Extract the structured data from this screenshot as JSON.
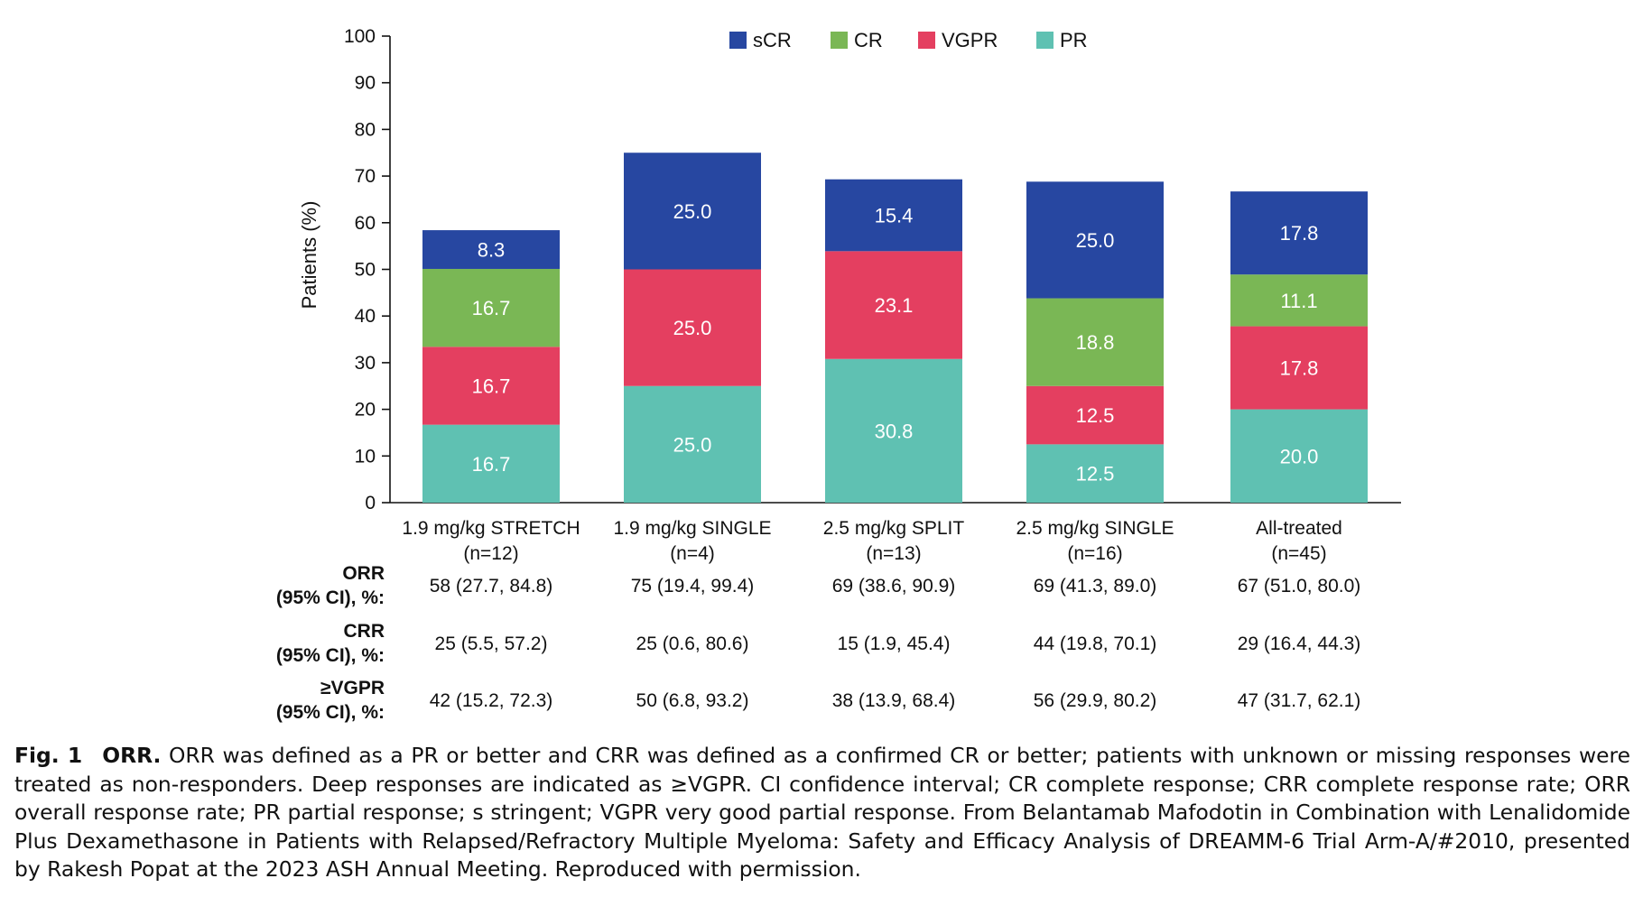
{
  "chart_data": {
    "type": "bar",
    "stacked": true,
    "ylabel": "Patients (%)",
    "ylim": [
      0,
      100
    ],
    "yticks": [
      0,
      10,
      20,
      30,
      40,
      50,
      60,
      70,
      80,
      90,
      100
    ],
    "grid": false,
    "legend_position": "top-center",
    "categories": [
      {
        "line1": "1.9 mg/kg STRETCH",
        "line2": "(n=12)"
      },
      {
        "line1": "1.9 mg/kg SINGLE",
        "line2": "(n=4)"
      },
      {
        "line1": "2.5 mg/kg SPLIT",
        "line2": "(n=13)"
      },
      {
        "line1": "2.5 mg/kg SINGLE",
        "line2": "(n=16)"
      },
      {
        "line1": "All-treated",
        "line2": "(n=45)"
      }
    ],
    "series": [
      {
        "name": "PR",
        "color": "#5fc1b2",
        "values": [
          16.7,
          25.0,
          30.8,
          12.5,
          20.0
        ],
        "labels": [
          "16.7",
          "25.0",
          "30.8",
          "12.5",
          "20.0"
        ]
      },
      {
        "name": "VGPR",
        "color": "#e43f60",
        "values": [
          16.7,
          25.0,
          23.1,
          12.5,
          17.8
        ],
        "labels": [
          "16.7",
          "25.0",
          "23.1",
          "12.5",
          "17.8"
        ]
      },
      {
        "name": "CR",
        "color": "#7ab755",
        "values": [
          16.7,
          null,
          null,
          18.8,
          11.1
        ],
        "labels": [
          "16.7",
          "",
          "",
          "18.8",
          "11.1"
        ]
      },
      {
        "name": "sCR",
        "color": "#2747a1",
        "values": [
          8.3,
          25.0,
          15.4,
          25.0,
          17.8
        ],
        "labels": [
          "8.3",
          "25.0",
          "15.4",
          "25.0",
          "17.8"
        ]
      }
    ],
    "legend_order": [
      "sCR",
      "CR",
      "VGPR",
      "PR"
    ]
  },
  "table": {
    "rows": [
      {
        "label_line1": "ORR",
        "label_line2": "(95% CI), %:",
        "values": [
          "58 (27.7, 84.8)",
          "75 (19.4, 99.4)",
          "69 (38.6, 90.9)",
          "69 (41.3, 89.0)",
          "67 (51.0, 80.0)"
        ]
      },
      {
        "label_line1": "CRR",
        "label_line2": "(95% CI), %:",
        "values": [
          "25 (5.5, 57.2)",
          "25 (0.6, 80.6)",
          "15 (1.9, 45.4)",
          "44 (19.8, 70.1)",
          "29 (16.4, 44.3)"
        ]
      },
      {
        "label_line1": "≥VGPR",
        "label_line2": "(95% CI), %:",
        "values": [
          "42 (15.2, 72.3)",
          "50 (6.8, 93.2)",
          "38 (13.9, 68.4)",
          "56 (29.9, 80.2)",
          "47 (31.7, 62.1)"
        ]
      }
    ]
  },
  "caption": {
    "label": "Fig. 1",
    "title": "ORR.",
    "text": "ORR was defined as a PR or better and CRR was defined as a confirmed CR or better; patients with unknown or missing responses were treated as non-responders. Deep responses are indicated as ≥VGPR. CI confidence interval; CR complete response; CRR complete response rate; ORR overall response rate; PR partial response; s stringent; VGPR very good partial response. From Belantamab Mafodotin in Combination with Lenalidomide Plus Dexamethasone in Patients with Relapsed/Refractory Multiple Myeloma: Safety and Efficacy Analysis of DREAMM-6 Trial Arm-A/#2010, presented by Rakesh Popat at the 2023 ASH Annual Meeting. Reproduced with permission."
  }
}
